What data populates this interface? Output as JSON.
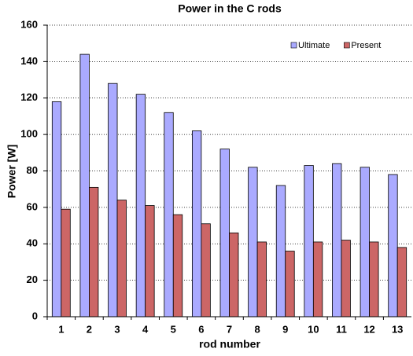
{
  "chart_data": {
    "type": "bar",
    "title": "Power in the C rods",
    "x_label": "rod number",
    "y_label": "Power [W]",
    "categories": [
      "1",
      "2",
      "3",
      "4",
      "5",
      "6",
      "7",
      "8",
      "9",
      "10",
      "11",
      "12",
      "13"
    ],
    "series": [
      {
        "name": "Ultimate",
        "color": "#aaaaff",
        "values": [
          118,
          144,
          128,
          122,
          112,
          102,
          92,
          82,
          72,
          83,
          84,
          82,
          78
        ]
      },
      {
        "name": "Present",
        "color": "#cc6666",
        "values": [
          59,
          71,
          64,
          61,
          56,
          51,
          46,
          41,
          36,
          41,
          42,
          41,
          38
        ]
      }
    ],
    "ylim": [
      0,
      160
    ],
    "yticks": [
      0,
      20,
      40,
      60,
      80,
      100,
      120,
      140,
      160
    ],
    "grid": true,
    "legend": "top-right"
  }
}
